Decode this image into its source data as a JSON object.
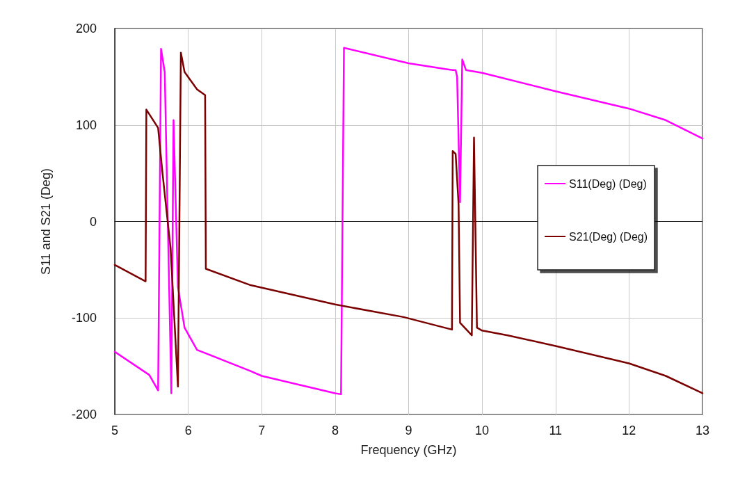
{
  "chart_data": {
    "type": "line",
    "xlabel": "Frequency (GHz)",
    "ylabel": "S11 and S21 (Deg)",
    "xlim": [
      5,
      13
    ],
    "xticks": [
      5,
      6,
      7,
      8,
      9,
      10,
      11,
      12,
      13
    ],
    "ylim": [
      -200,
      200
    ],
    "yticks": [
      -200,
      -100,
      0,
      100,
      200
    ],
    "grid": true,
    "legend": "right",
    "marker": "none",
    "line_style": "solid",
    "series": [
      {
        "name": "S11(Deg) (Deg)",
        "color": "#ff00ff",
        "x": [
          5.0,
          5.47,
          5.59,
          5.63,
          5.68,
          5.77,
          5.8,
          5.86,
          5.95,
          6.12,
          6.85,
          7.0,
          8.0,
          8.08,
          8.12,
          9.0,
          9.5,
          9.6,
          9.64,
          9.66,
          9.7,
          9.73,
          9.78,
          10.0,
          11.0,
          12.0,
          12.5,
          13.0
        ],
        "values": [
          -135,
          -159,
          -175,
          179,
          155,
          -178,
          105,
          -68,
          -110,
          -133,
          -155,
          -160,
          -178,
          -179,
          180,
          164,
          158,
          157,
          157,
          150,
          20,
          168,
          157,
          154,
          135,
          117,
          105,
          86
        ]
      },
      {
        "name": "S21(Deg) (Deg)",
        "color": "#7b0000",
        "x": [
          5.0,
          5.42,
          5.43,
          5.59,
          5.65,
          5.76,
          5.86,
          5.9,
          5.95,
          6.12,
          6.23,
          6.24,
          6.85,
          8.0,
          8.93,
          9.59,
          9.6,
          9.64,
          9.68,
          9.7,
          9.86,
          9.89,
          9.93,
          10.0,
          10.35,
          11.0,
          12.0,
          12.5,
          13.0
        ],
        "values": [
          -45,
          -62,
          116,
          97,
          50,
          -28,
          -171,
          175,
          155,
          137,
          131,
          -49,
          -66,
          -86,
          -99,
          -112,
          73,
          70,
          18,
          -105,
          -118,
          87,
          -110,
          -113,
          -118,
          -129,
          -147,
          -160,
          -178
        ]
      }
    ]
  }
}
